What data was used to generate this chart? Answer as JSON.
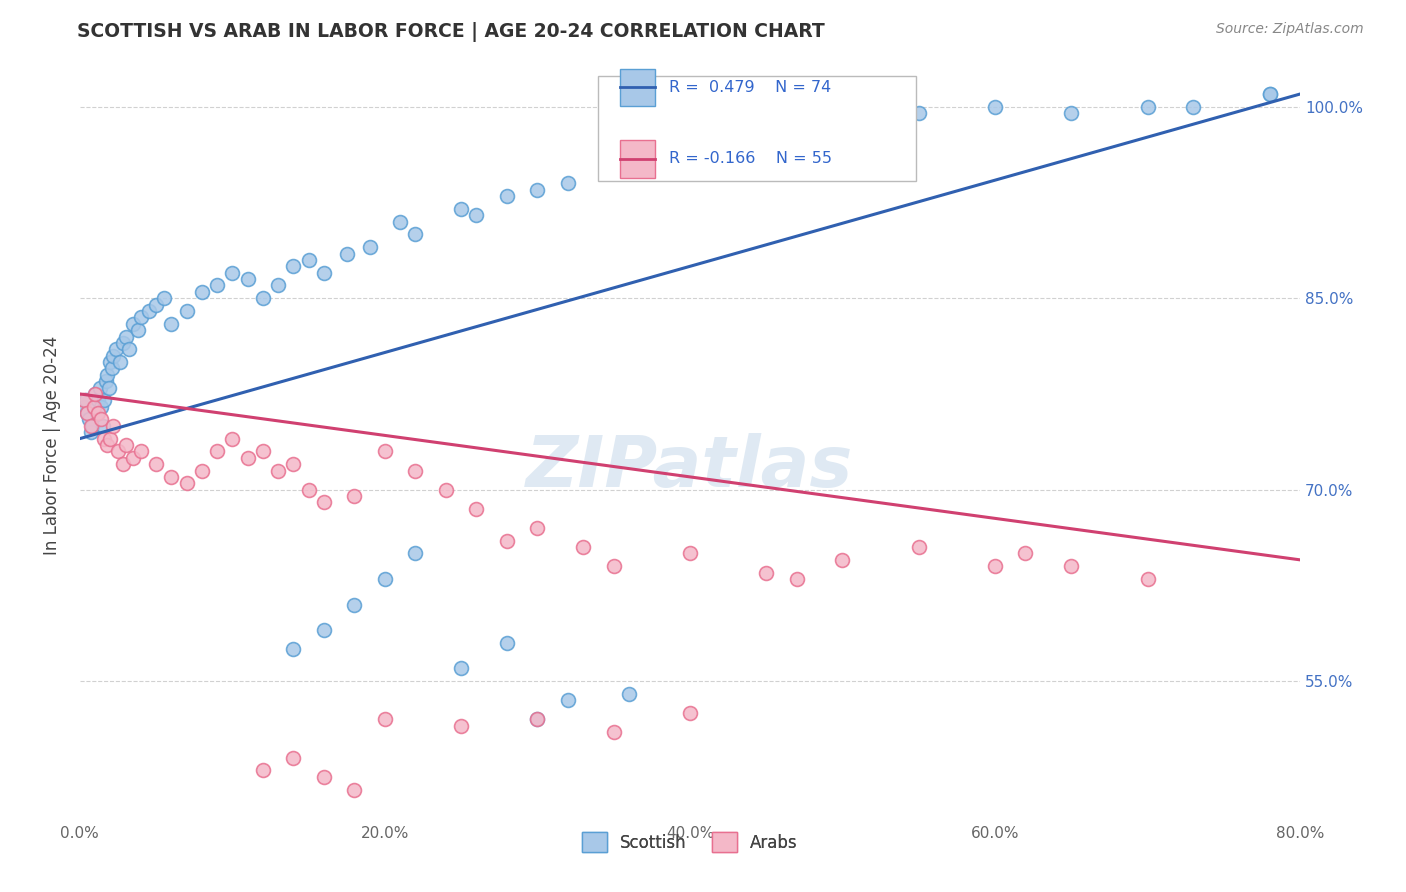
{
  "title": "SCOTTISH VS ARAB IN LABOR FORCE | AGE 20-24 CORRELATION CHART",
  "source": "Source: ZipAtlas.com",
  "ylabel_left": "In Labor Force | Age 20-24",
  "xlim": [
    0.0,
    80.0
  ],
  "ylim": [
    44.0,
    103.0
  ],
  "blue_color": "#a8c8e8",
  "blue_edge": "#5a9fd4",
  "pink_color": "#f4b8c8",
  "pink_edge": "#e87090",
  "trend_blue": "#3060b0",
  "trend_pink": "#d04070",
  "legend_R_blue": "R =  0.479",
  "legend_N_blue": "N = 74",
  "legend_R_pink": "R = -0.166",
  "legend_N_pink": "N = 55",
  "watermark": "ZIPatlas",
  "background_color": "#ffffff",
  "grid_color": "#cccccc",
  "blue_trend_x0": 0,
  "blue_trend_y0": 74.0,
  "blue_trend_x1": 80,
  "blue_trend_y1": 101.0,
  "pink_trend_x0": 0,
  "pink_trend_y0": 77.5,
  "pink_trend_x1": 80,
  "pink_trend_y1": 64.5,
  "blue_x": [
    0.3,
    0.4,
    0.5,
    0.6,
    0.7,
    0.8,
    0.9,
    1.0,
    1.1,
    1.2,
    1.3,
    1.4,
    1.5,
    1.6,
    1.7,
    1.8,
    1.9,
    2.0,
    2.1,
    2.2,
    2.4,
    2.6,
    2.8,
    3.0,
    3.2,
    3.5,
    3.8,
    4.0,
    4.5,
    5.0,
    5.5,
    6.0,
    7.0,
    8.0,
    9.0,
    10.0,
    11.0,
    12.0,
    13.0,
    14.0,
    15.0,
    16.0,
    17.5,
    19.0,
    21.0,
    22.0,
    25.0,
    26.0,
    28.0,
    30.0,
    32.0,
    35.0,
    38.0,
    42.0,
    45.0,
    48.0,
    51.0,
    55.0,
    60.0,
    65.0,
    70.0,
    73.0,
    78.0,
    14.0,
    16.0,
    18.0,
    20.0,
    22.0,
    25.0,
    28.0,
    30.0,
    32.0,
    36.0,
    78.0
  ],
  "blue_y": [
    76.5,
    77.0,
    76.0,
    75.5,
    74.5,
    75.0,
    76.5,
    77.5,
    76.0,
    77.0,
    78.0,
    76.5,
    75.0,
    77.0,
    78.5,
    79.0,
    78.0,
    80.0,
    79.5,
    80.5,
    81.0,
    80.0,
    81.5,
    82.0,
    81.0,
    83.0,
    82.5,
    83.5,
    84.0,
    84.5,
    85.0,
    83.0,
    84.0,
    85.5,
    86.0,
    87.0,
    86.5,
    85.0,
    86.0,
    87.5,
    88.0,
    87.0,
    88.5,
    89.0,
    91.0,
    90.0,
    92.0,
    91.5,
    93.0,
    93.5,
    94.0,
    95.0,
    96.0,
    97.0,
    98.0,
    98.5,
    99.0,
    99.5,
    100.0,
    99.5,
    100.0,
    100.0,
    101.0,
    57.5,
    59.0,
    61.0,
    63.0,
    65.0,
    56.0,
    58.0,
    52.0,
    53.5,
    54.0,
    101.0
  ],
  "pink_x": [
    0.3,
    0.5,
    0.7,
    0.9,
    1.0,
    1.2,
    1.4,
    1.6,
    1.8,
    2.0,
    2.2,
    2.5,
    2.8,
    3.0,
    3.5,
    4.0,
    5.0,
    6.0,
    7.0,
    8.0,
    9.0,
    10.0,
    11.0,
    12.0,
    13.0,
    14.0,
    15.0,
    16.0,
    18.0,
    20.0,
    22.0,
    24.0,
    26.0,
    28.0,
    30.0,
    33.0,
    35.0,
    40.0,
    45.0,
    47.0,
    50.0,
    55.0,
    60.0,
    62.0,
    65.0,
    70.0,
    12.0,
    14.0,
    16.0,
    18.0,
    20.0,
    25.0,
    30.0,
    35.0,
    40.0
  ],
  "pink_y": [
    77.0,
    76.0,
    75.0,
    76.5,
    77.5,
    76.0,
    75.5,
    74.0,
    73.5,
    74.0,
    75.0,
    73.0,
    72.0,
    73.5,
    72.5,
    73.0,
    72.0,
    71.0,
    70.5,
    71.5,
    73.0,
    74.0,
    72.5,
    73.0,
    71.5,
    72.0,
    70.0,
    69.0,
    69.5,
    73.0,
    71.5,
    70.0,
    68.5,
    66.0,
    67.0,
    65.5,
    64.0,
    65.0,
    63.5,
    63.0,
    64.5,
    65.5,
    64.0,
    65.0,
    64.0,
    63.0,
    48.0,
    49.0,
    47.5,
    46.5,
    52.0,
    51.5,
    52.0,
    51.0,
    52.5
  ]
}
